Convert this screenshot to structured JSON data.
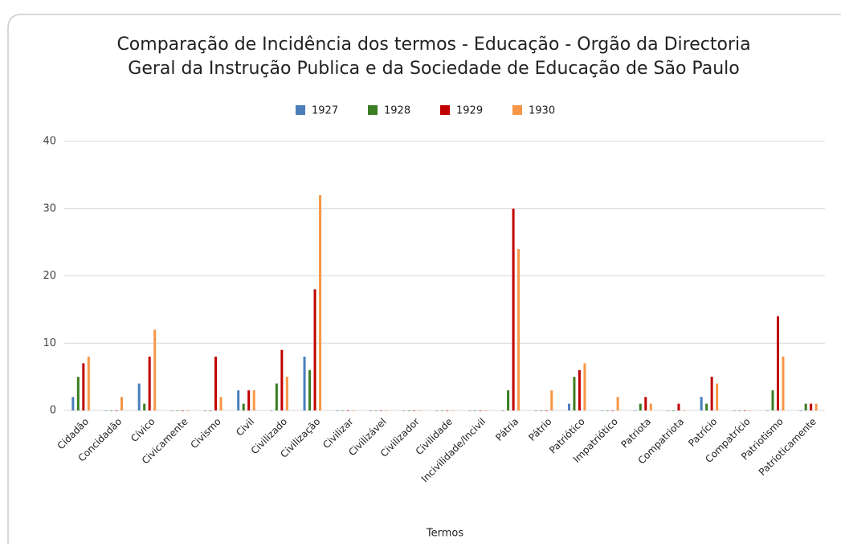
{
  "chart_data": {
    "type": "bar",
    "title": [
      "Comparação de Incidência dos termos - Educação - Orgão da Directoria",
      "Geral da Instrução Publica e da Sociedade de Educação de São Paulo"
    ],
    "xlabel": "Termos",
    "categories": [
      "Cidadão",
      "Concidadão",
      "Cívico",
      "Civicamente",
      "Civismo",
      "Civil",
      "Civilizado",
      "Civilização",
      "Civilizar",
      "Civilizável",
      "Civilizador",
      "Civilidade",
      "Incivilidade/Incivil",
      "Pátria",
      "Pátrio",
      "Patriótico",
      "Impatriótico",
      "Patriota",
      "Compatriota",
      "Patrício",
      "Compatrício",
      "Patriotismo",
      "Patrioticamente"
    ],
    "series": [
      {
        "name": "1927",
        "color": "#4a7ebb",
        "values": [
          2,
          0,
          4,
          0,
          0,
          3,
          0,
          8,
          0,
          0,
          0,
          0,
          0,
          0,
          0,
          1,
          0,
          0,
          0,
          2,
          0,
          0,
          0
        ]
      },
      {
        "name": "1928",
        "color": "#3a7d22",
        "values": [
          5,
          0,
          1,
          0,
          0,
          1,
          4,
          6,
          0,
          0,
          0,
          0,
          0,
          3,
          0,
          5,
          0,
          1,
          0,
          1,
          0,
          3,
          1
        ]
      },
      {
        "name": "1929",
        "color": "#c00000",
        "values": [
          7,
          0,
          8,
          0,
          8,
          3,
          9,
          18,
          0,
          0,
          0,
          0,
          0,
          30,
          0,
          6,
          0,
          2,
          1,
          5,
          0,
          14,
          1
        ]
      },
      {
        "name": "1930",
        "color": "#f79646",
        "values": [
          8,
          2,
          12,
          0,
          2,
          3,
          5,
          32,
          0,
          0,
          0,
          0,
          0,
          24,
          3,
          7,
          2,
          1,
          0,
          4,
          0,
          8,
          1
        ]
      }
    ],
    "ylim": [
      0,
      40
    ],
    "yticks": [
      0,
      10,
      20,
      30,
      40
    ],
    "grid": true,
    "legend": "top"
  }
}
